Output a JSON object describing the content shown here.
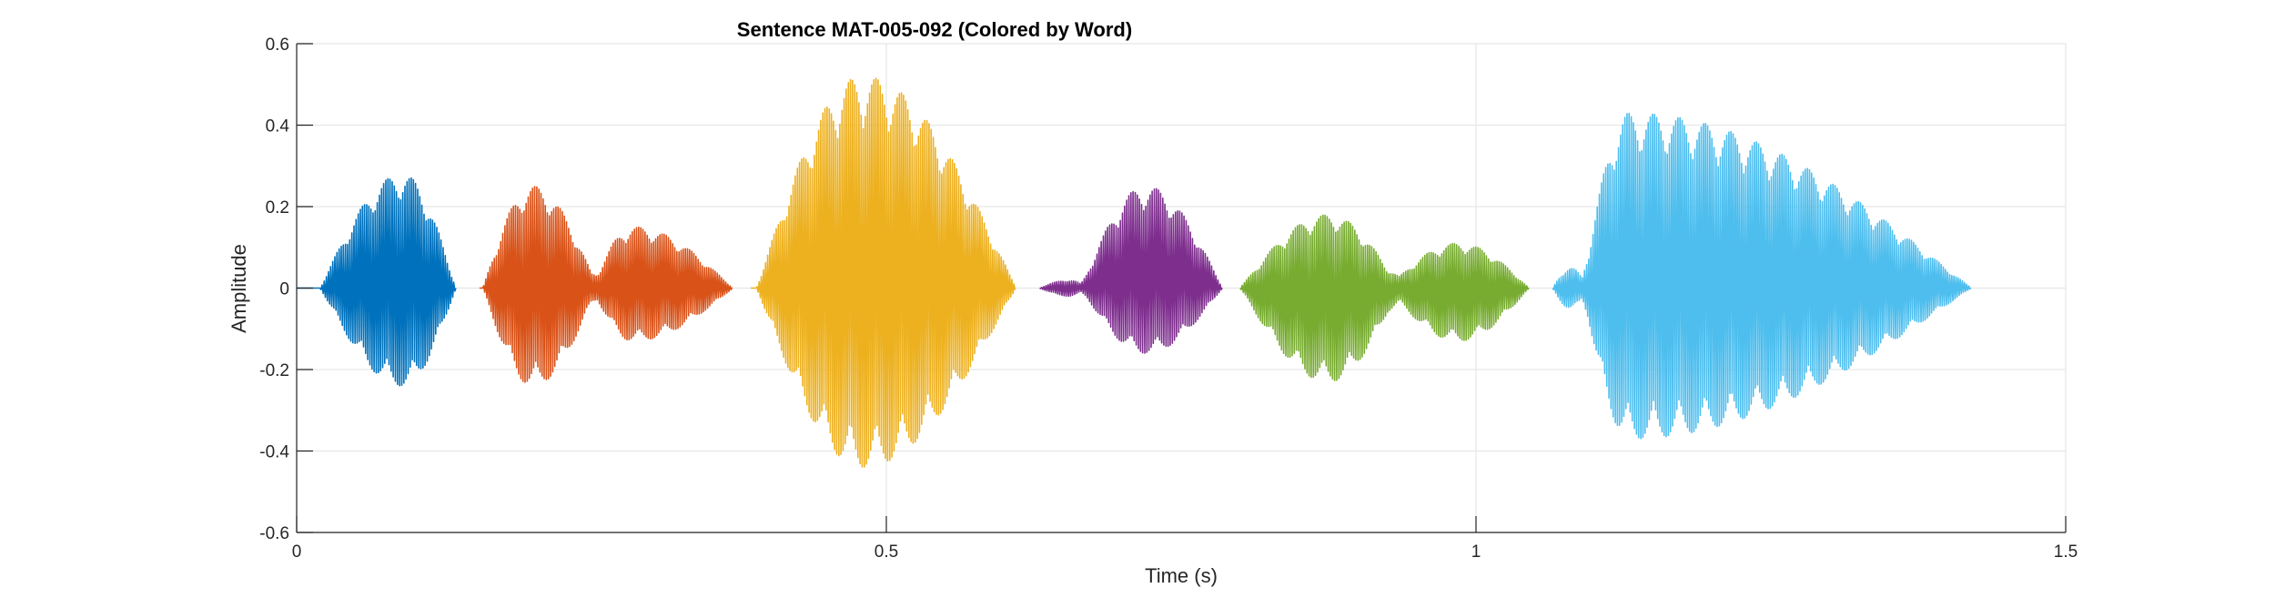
{
  "chart_data": {
    "type": "line",
    "title": "Sentence MAT-005-092 (Colored by Word)",
    "xlabel": "Time (s)",
    "ylabel": "Amplitude",
    "xlim": [
      0,
      1.5
    ],
    "ylim": [
      -0.6,
      0.6
    ],
    "xticks": [
      0,
      0.5,
      1,
      1.5
    ],
    "xtick_labels": [
      "0",
      "0.5",
      "1",
      "1.5"
    ],
    "yticks": [
      0.6,
      0.4,
      0.2,
      0,
      -0.2,
      -0.4,
      -0.6
    ],
    "ytick_labels": [
      "0.6",
      "0.4",
      "0.2",
      "0",
      "-0.2",
      "-0.4",
      "-0.6"
    ],
    "grid": true,
    "series": [
      {
        "color": "#0072BD",
        "segments": [
          {
            "t_start": 0.0,
            "t_end": 0.135,
            "lobes": [
              {
                "t_start": 0.02,
                "t_end": 0.135,
                "peak_t": 0.09,
                "peak_pos": 0.28,
                "peak_neg": -0.24
              }
            ]
          }
        ]
      },
      {
        "color": "#D95319",
        "segments": [
          {
            "t_start": 0.155,
            "t_end": 0.37,
            "lobes": [
              {
                "t_start": 0.158,
                "t_end": 0.255,
                "peak_t": 0.2,
                "peak_pos": 0.25,
                "peak_neg": -0.24
              },
              {
                "t_start": 0.25,
                "t_end": 0.37,
                "peak_t": 0.285,
                "peak_pos": 0.15,
                "peak_neg": -0.13
              }
            ]
          }
        ]
      },
      {
        "color": "#EDB120",
        "segments": [
          {
            "t_start": 0.385,
            "t_end": 0.61,
            "lobes": [
              {
                "t_start": 0.39,
                "t_end": 0.61,
                "peak_t": 0.48,
                "peak_pos": 0.52,
                "peak_neg": -0.44
              }
            ]
          }
        ]
      },
      {
        "color": "#7E2F8E",
        "segments": [
          {
            "t_start": 0.63,
            "t_end": 0.785,
            "lobes": [
              {
                "t_start": 0.63,
                "t_end": 0.67,
                "peak_t": 0.655,
                "peak_pos": 0.02,
                "peak_neg": -0.02
              },
              {
                "t_start": 0.665,
                "t_end": 0.785,
                "peak_t": 0.72,
                "peak_pos": 0.25,
                "peak_neg": -0.16
              }
            ]
          }
        ]
      },
      {
        "color": "#77AC30",
        "segments": [
          {
            "t_start": 0.8,
            "t_end": 1.045,
            "lobes": [
              {
                "t_start": 0.8,
                "t_end": 0.935,
                "peak_t": 0.875,
                "peak_pos": 0.18,
                "peak_neg": -0.23
              },
              {
                "t_start": 0.925,
                "t_end": 1.045,
                "peak_t": 0.985,
                "peak_pos": 0.11,
                "peak_neg": -0.13
              }
            ]
          }
        ]
      },
      {
        "color": "#4DBEEE",
        "segments": [
          {
            "t_start": 1.065,
            "t_end": 1.42,
            "lobes": [
              {
                "t_start": 1.065,
                "t_end": 1.095,
                "peak_t": 1.08,
                "peak_pos": 0.05,
                "peak_neg": -0.05
              },
              {
                "t_start": 1.09,
                "t_end": 1.42,
                "peak_t": 1.13,
                "peak_pos": 0.43,
                "peak_neg": -0.37
              }
            ]
          }
        ]
      }
    ]
  }
}
